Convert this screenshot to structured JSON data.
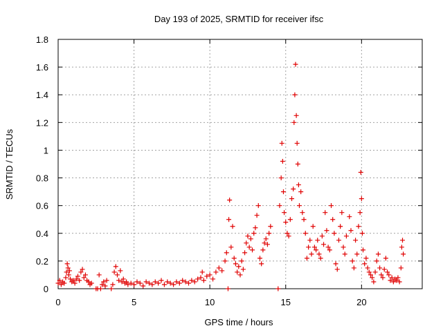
{
  "chart_data": {
    "type": "scatter",
    "title": "Day 193 of 2025, SRMTID for receiver ifsc",
    "xlabel": "GPS time / hours",
    "ylabel": "SRMTID / TECUs",
    "xlim": [
      0,
      24
    ],
    "ylim": [
      0,
      1.8
    ],
    "x_ticks": [
      0,
      5,
      10,
      15,
      20
    ],
    "x_tick_labels": [
      "0",
      "5",
      "10",
      "15",
      "20"
    ],
    "y_ticks": [
      0,
      0.2,
      0.4,
      0.6,
      0.8,
      1.0,
      1.2,
      1.4,
      1.6,
      1.8
    ],
    "y_tick_labels": [
      "0",
      "0.2",
      "0.4",
      "0.6",
      "0.8",
      "1",
      "1.2",
      "1.4",
      "1.6",
      "1.8"
    ],
    "grid": true,
    "marker": "+",
    "marker_color": "#e00000",
    "series": [
      {
        "name": "SRMTID",
        "points": [
          [
            0.0,
            0.04
          ],
          [
            0.1,
            0.06
          ],
          [
            0.2,
            0.03
          ],
          [
            0.3,
            0.05
          ],
          [
            0.4,
            0.04
          ],
          [
            0.5,
            0.08
          ],
          [
            0.55,
            0.12
          ],
          [
            0.6,
            0.18
          ],
          [
            0.65,
            0.15
          ],
          [
            0.7,
            0.1
          ],
          [
            0.75,
            0.13
          ],
          [
            0.8,
            0.07
          ],
          [
            0.9,
            0.05
          ],
          [
            1.0,
            0.06
          ],
          [
            1.1,
            0.04
          ],
          [
            1.2,
            0.07
          ],
          [
            1.3,
            0.09
          ],
          [
            1.4,
            0.06
          ],
          [
            1.5,
            0.12
          ],
          [
            1.6,
            0.14
          ],
          [
            1.7,
            0.08
          ],
          [
            1.8,
            0.1
          ],
          [
            1.9,
            0.06
          ],
          [
            2.0,
            0.05
          ],
          [
            2.1,
            0.03
          ],
          [
            2.2,
            0.04
          ],
          [
            2.5,
            0.0
          ],
          [
            2.6,
            0.0
          ],
          [
            2.7,
            0.1
          ],
          [
            2.8,
            0.0
          ],
          [
            2.9,
            0.03
          ],
          [
            3.0,
            0.05
          ],
          [
            3.1,
            0.02
          ],
          [
            3.2,
            0.06
          ],
          [
            3.5,
            0.0
          ],
          [
            3.6,
            0.03
          ],
          [
            3.7,
            0.12
          ],
          [
            3.8,
            0.16
          ],
          [
            3.9,
            0.1
          ],
          [
            4.0,
            0.06
          ],
          [
            4.1,
            0.13
          ],
          [
            4.2,
            0.05
          ],
          [
            4.3,
            0.07
          ],
          [
            4.4,
            0.04
          ],
          [
            4.5,
            0.05
          ],
          [
            4.6,
            0.03
          ],
          [
            4.8,
            0.04
          ],
          [
            5.0,
            0.03
          ],
          [
            5.2,
            0.05
          ],
          [
            5.4,
            0.04
          ],
          [
            5.6,
            0.02
          ],
          [
            5.8,
            0.05
          ],
          [
            6.0,
            0.04
          ],
          [
            6.2,
            0.03
          ],
          [
            6.4,
            0.05
          ],
          [
            6.6,
            0.04
          ],
          [
            6.8,
            0.06
          ],
          [
            7.0,
            0.03
          ],
          [
            7.2,
            0.05
          ],
          [
            7.4,
            0.04
          ],
          [
            7.6,
            0.03
          ],
          [
            7.8,
            0.05
          ],
          [
            8.0,
            0.04
          ],
          [
            8.2,
            0.06
          ],
          [
            8.4,
            0.05
          ],
          [
            8.6,
            0.04
          ],
          [
            8.8,
            0.06
          ],
          [
            9.0,
            0.05
          ],
          [
            9.2,
            0.07
          ],
          [
            9.4,
            0.08
          ],
          [
            9.5,
            0.12
          ],
          [
            9.6,
            0.06
          ],
          [
            9.8,
            0.09
          ],
          [
            10.0,
            0.1
          ],
          [
            10.2,
            0.07
          ],
          [
            10.4,
            0.12
          ],
          [
            10.6,
            0.15
          ],
          [
            10.8,
            0.13
          ],
          [
            11.0,
            0.2
          ],
          [
            11.1,
            0.26
          ],
          [
            11.2,
            0.0
          ],
          [
            11.25,
            0.5
          ],
          [
            11.3,
            0.64
          ],
          [
            11.4,
            0.3
          ],
          [
            11.5,
            0.45
          ],
          [
            11.6,
            0.22
          ],
          [
            11.7,
            0.18
          ],
          [
            11.8,
            0.12
          ],
          [
            11.9,
            0.16
          ],
          [
            12.0,
            0.1
          ],
          [
            12.1,
            0.2
          ],
          [
            12.2,
            0.14
          ],
          [
            12.3,
            0.26
          ],
          [
            12.4,
            0.33
          ],
          [
            12.5,
            0.38
          ],
          [
            12.6,
            0.3
          ],
          [
            12.7,
            0.36
          ],
          [
            12.8,
            0.28
          ],
          [
            12.9,
            0.4
          ],
          [
            13.0,
            0.44
          ],
          [
            13.1,
            0.53
          ],
          [
            13.2,
            0.6
          ],
          [
            13.3,
            0.22
          ],
          [
            13.4,
            0.18
          ],
          [
            13.5,
            0.28
          ],
          [
            13.6,
            0.33
          ],
          [
            13.7,
            0.36
          ],
          [
            13.8,
            0.32
          ],
          [
            13.9,
            0.4
          ],
          [
            14.0,
            0.45
          ],
          [
            14.5,
            0.0
          ],
          [
            14.6,
            0.6
          ],
          [
            14.7,
            0.8
          ],
          [
            14.75,
            1.05
          ],
          [
            14.8,
            0.92
          ],
          [
            14.85,
            0.7
          ],
          [
            14.9,
            0.55
          ],
          [
            15.0,
            0.48
          ],
          [
            15.1,
            0.4
          ],
          [
            15.2,
            0.38
          ],
          [
            15.3,
            0.5
          ],
          [
            15.4,
            0.65
          ],
          [
            15.5,
            0.72
          ],
          [
            15.55,
            1.2
          ],
          [
            15.6,
            1.4
          ],
          [
            15.65,
            1.62
          ],
          [
            15.7,
            1.25
          ],
          [
            15.75,
            1.05
          ],
          [
            15.8,
            0.9
          ],
          [
            15.85,
            0.75
          ],
          [
            15.9,
            0.6
          ],
          [
            16.0,
            0.7
          ],
          [
            16.1,
            0.55
          ],
          [
            16.2,
            0.5
          ],
          [
            16.3,
            0.4
          ],
          [
            16.4,
            0.22
          ],
          [
            16.5,
            0.3
          ],
          [
            16.6,
            0.35
          ],
          [
            16.7,
            0.25
          ],
          [
            16.8,
            0.45
          ],
          [
            16.9,
            0.3
          ],
          [
            17.0,
            0.28
          ],
          [
            17.1,
            0.35
          ],
          [
            17.2,
            0.25
          ],
          [
            17.3,
            0.22
          ],
          [
            17.4,
            0.38
          ],
          [
            17.5,
            0.32
          ],
          [
            17.6,
            0.55
          ],
          [
            17.7,
            0.42
          ],
          [
            17.8,
            0.3
          ],
          [
            17.9,
            0.28
          ],
          [
            18.0,
            0.6
          ],
          [
            18.1,
            0.5
          ],
          [
            18.2,
            0.4
          ],
          [
            18.3,
            0.18
          ],
          [
            18.4,
            0.14
          ],
          [
            18.5,
            0.35
          ],
          [
            18.6,
            0.45
          ],
          [
            18.7,
            0.55
          ],
          [
            18.8,
            0.3
          ],
          [
            18.9,
            0.25
          ],
          [
            19.0,
            0.38
          ],
          [
            19.2,
            0.52
          ],
          [
            19.3,
            0.42
          ],
          [
            19.4,
            0.2
          ],
          [
            19.5,
            0.15
          ],
          [
            19.6,
            0.35
          ],
          [
            19.7,
            0.25
          ],
          [
            19.8,
            0.45
          ],
          [
            19.9,
            0.55
          ],
          [
            19.95,
            0.84
          ],
          [
            20.0,
            0.65
          ],
          [
            20.05,
            0.4
          ],
          [
            20.1,
            0.28
          ],
          [
            20.2,
            0.18
          ],
          [
            20.3,
            0.22
          ],
          [
            20.4,
            0.15
          ],
          [
            20.5,
            0.12
          ],
          [
            20.6,
            0.1
          ],
          [
            20.7,
            0.08
          ],
          [
            20.8,
            0.05
          ],
          [
            20.9,
            0.12
          ],
          [
            21.0,
            0.2
          ],
          [
            21.1,
            0.25
          ],
          [
            21.2,
            0.15
          ],
          [
            21.3,
            0.1
          ],
          [
            21.4,
            0.08
          ],
          [
            21.5,
            0.14
          ],
          [
            21.6,
            0.22
          ],
          [
            21.7,
            0.12
          ],
          [
            21.8,
            0.1
          ],
          [
            21.9,
            0.06
          ],
          [
            22.0,
            0.08
          ],
          [
            22.1,
            0.05
          ],
          [
            22.2,
            0.07
          ],
          [
            22.3,
            0.06
          ],
          [
            22.4,
            0.08
          ],
          [
            22.5,
            0.05
          ],
          [
            22.6,
            0.15
          ],
          [
            22.65,
            0.3
          ],
          [
            22.7,
            0.35
          ],
          [
            22.75,
            0.25
          ]
        ]
      }
    ]
  }
}
